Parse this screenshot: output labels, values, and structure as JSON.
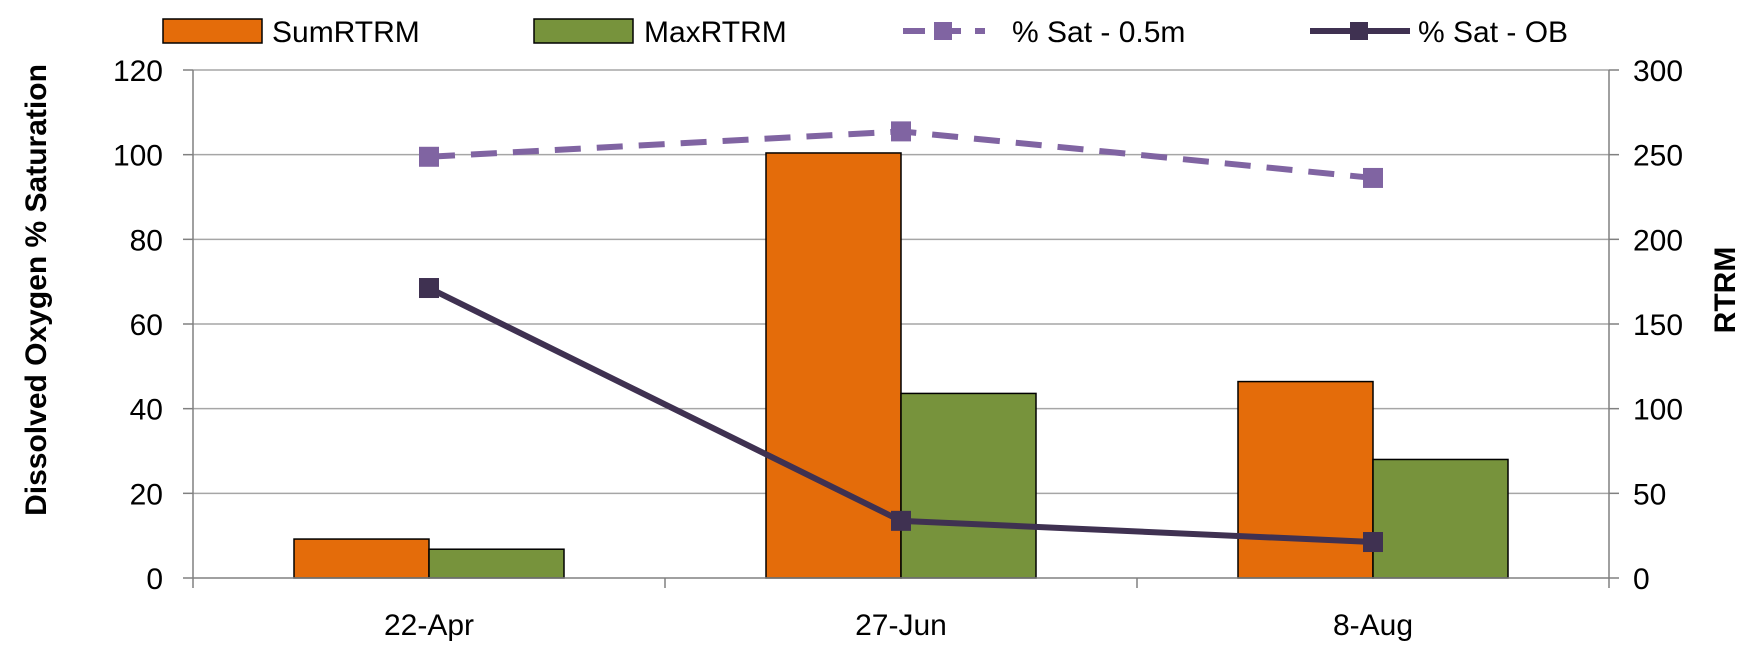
{
  "chart_data": {
    "type": "bar",
    "categories": [
      "22-Apr",
      "27-Jun",
      "8-Aug"
    ],
    "bar_series": [
      {
        "name": "SumRTRM",
        "values": [
          23,
          251,
          116
        ],
        "color": "#E46C0A",
        "axis": "right"
      },
      {
        "name": "MaxRTRM",
        "values": [
          17,
          109,
          70
        ],
        "color": "#77933C",
        "axis": "right"
      }
    ],
    "line_series": [
      {
        "name": "% Sat - 0.5m",
        "values": [
          99.5,
          105.5,
          94.5
        ],
        "color": "#8064A2",
        "style": "dashed",
        "marker": "square",
        "axis": "left"
      },
      {
        "name": "% Sat - OB",
        "values": [
          68.5,
          13.5,
          8.5
        ],
        "color": "#3F3151",
        "style": "solid",
        "marker": "square",
        "axis": "left"
      }
    ],
    "ylabel": "Dissolved Oxygen % Saturation",
    "y2label": "RTRM",
    "ylim": [
      0,
      120
    ],
    "yticks": [
      "0",
      "20",
      "40",
      "60",
      "80",
      "100",
      "120"
    ],
    "y2lim": [
      0,
      300
    ],
    "y2ticks": [
      "0",
      "50",
      "100",
      "150",
      "200",
      "250",
      "300"
    ],
    "grid": true,
    "legend_position": "top"
  }
}
